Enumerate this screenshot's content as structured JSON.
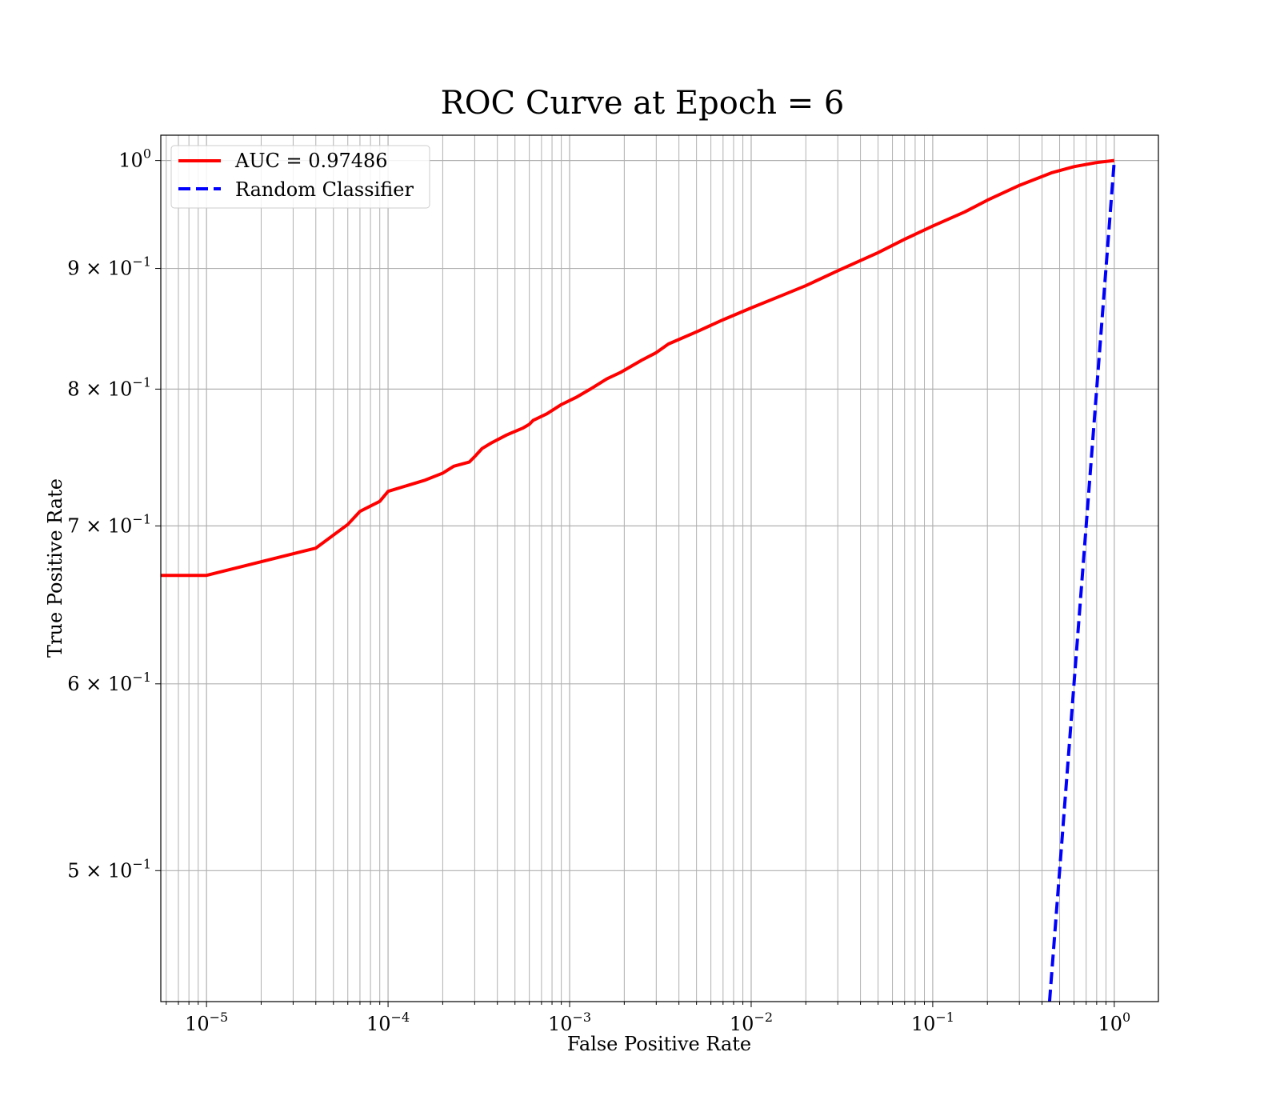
{
  "chart_data": {
    "type": "line",
    "title": "ROC Curve at Epoch = 6",
    "xlabel": "False Positive Rate",
    "ylabel": "True Positive Rate",
    "xscale": "log",
    "yscale": "log",
    "xlim": [
      5.6e-06,
      1.75
    ],
    "ylim": [
      0.44,
      1.025
    ],
    "grid": true,
    "legend_position": "top-left",
    "x_ticks": [
      {
        "value": 1e-05,
        "base": "10",
        "exp": "−5"
      },
      {
        "value": 0.0001,
        "base": "10",
        "exp": "−4"
      },
      {
        "value": 0.001,
        "base": "10",
        "exp": "−3"
      },
      {
        "value": 0.01,
        "base": "10",
        "exp": "−2"
      },
      {
        "value": 0.1,
        "base": "10",
        "exp": "−1"
      },
      {
        "value": 1,
        "base": "10",
        "exp": "0"
      }
    ],
    "y_ticks": [
      {
        "value": 1.0,
        "mant": "",
        "base": "10",
        "exp": "0"
      },
      {
        "value": 0.9,
        "mant": "9 × ",
        "base": "10",
        "exp": "−1"
      },
      {
        "value": 0.8,
        "mant": "8 × ",
        "base": "10",
        "exp": "−1"
      },
      {
        "value": 0.7,
        "mant": "7 × ",
        "base": "10",
        "exp": "−1"
      },
      {
        "value": 0.6,
        "mant": "6 × ",
        "base": "10",
        "exp": "−1"
      },
      {
        "value": 0.5,
        "mant": "5 × ",
        "base": "10",
        "exp": "−1"
      }
    ],
    "series": [
      {
        "name": "AUC = 0.97486",
        "color": "#ff0000",
        "style": "solid",
        "x": [
          5.6e-06,
          1e-05,
          4e-05,
          6e-05,
          7e-05,
          9e-05,
          0.0001,
          0.00016,
          0.0002,
          0.00023,
          0.00028,
          0.0003,
          0.00033,
          0.00037,
          0.00045,
          0.00055,
          0.0006,
          0.00063,
          0.00075,
          0.0009,
          0.0011,
          0.0013,
          0.0016,
          0.0019,
          0.0025,
          0.003,
          0.0035,
          0.005,
          0.007,
          0.01,
          0.015,
          0.02,
          0.03,
          0.05,
          0.07,
          0.1,
          0.15,
          0.2,
          0.3,
          0.45,
          0.6,
          0.8,
          1.0
        ],
        "y": [
          0.667,
          0.667,
          0.685,
          0.701,
          0.71,
          0.717,
          0.724,
          0.732,
          0.737,
          0.742,
          0.745,
          0.749,
          0.755,
          0.759,
          0.765,
          0.77,
          0.773,
          0.776,
          0.781,
          0.788,
          0.794,
          0.8,
          0.808,
          0.813,
          0.823,
          0.829,
          0.836,
          0.846,
          0.856,
          0.866,
          0.877,
          0.885,
          0.898,
          0.914,
          0.926,
          0.938,
          0.951,
          0.962,
          0.976,
          0.988,
          0.994,
          0.998,
          1.0
        ]
      },
      {
        "name": "Random Classifier",
        "color": "#0000ff",
        "style": "dashed",
        "x": [
          0.44,
          1.0
        ],
        "y": [
          0.44,
          1.0
        ]
      }
    ]
  }
}
